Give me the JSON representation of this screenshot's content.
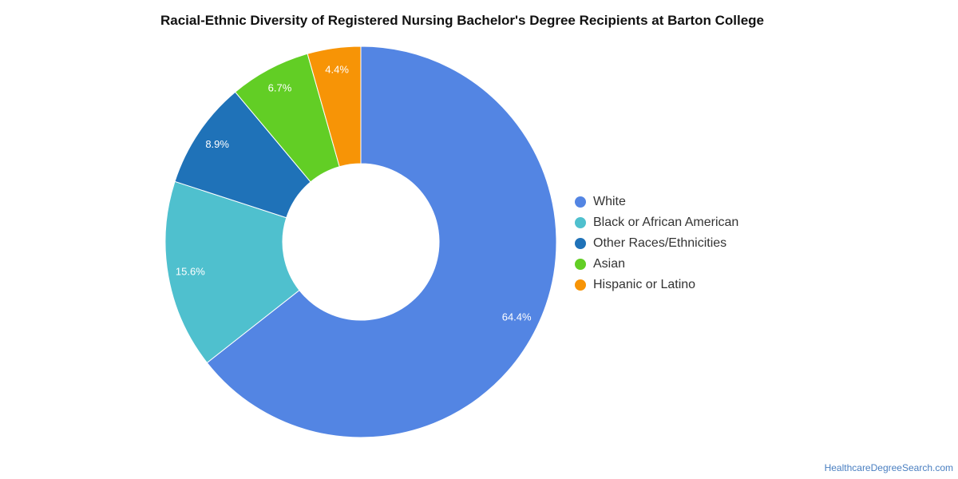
{
  "title": "Racial-Ethnic Diversity of Registered Nursing Bachelor's Degree Recipients at Barton College",
  "source": "HealthcareDegreeSearch.com",
  "chart_data": {
    "type": "pie",
    "style": "donut",
    "title": "Racial-Ethnic Diversity of Registered Nursing Bachelor's Degree Recipients at Barton College",
    "legend_position": "right",
    "slices": [
      {
        "name": "White",
        "value": 64.4,
        "label": "64.4%",
        "color": "#5385e3"
      },
      {
        "name": "Black or African American",
        "value": 15.6,
        "label": "15.6%",
        "color": "#4fc0ce"
      },
      {
        "name": "Other Races/Ethnicities",
        "value": 8.9,
        "label": "8.9%",
        "color": "#1f72b8"
      },
      {
        "name": "Asian",
        "value": 6.7,
        "label": "6.7%",
        "color": "#62ce25"
      },
      {
        "name": "Hispanic or Latino",
        "value": 4.4,
        "label": "4.4%",
        "color": "#f79406"
      }
    ]
  }
}
